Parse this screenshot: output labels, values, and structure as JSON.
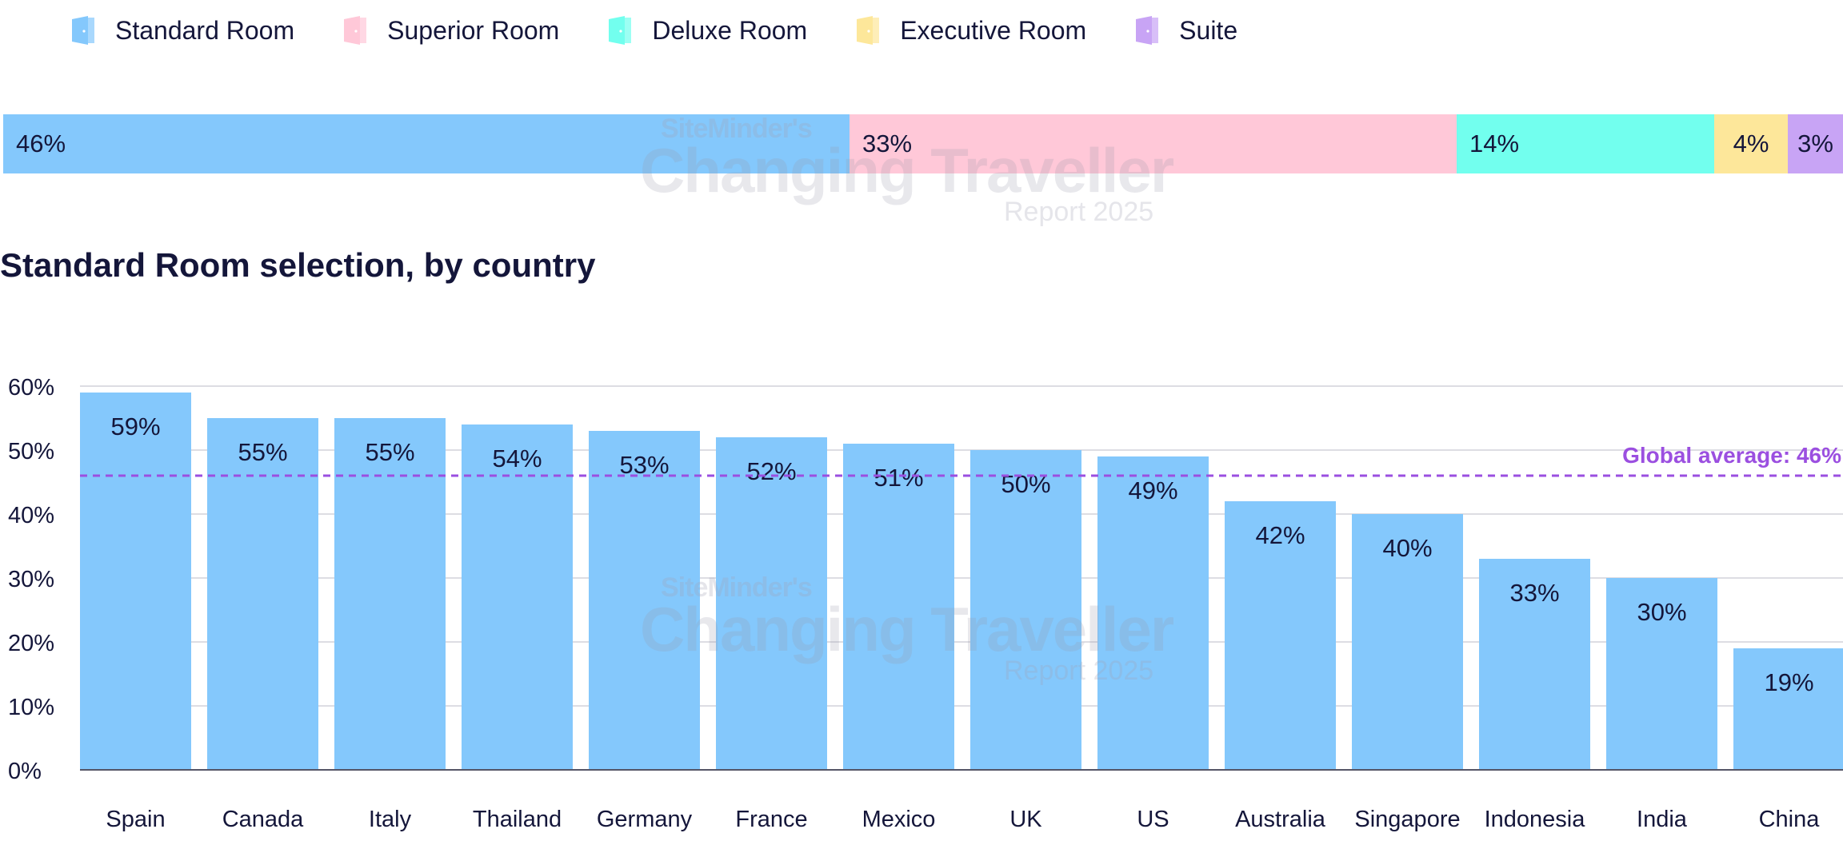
{
  "legend": {
    "items": [
      {
        "label": "Standard Room",
        "color": "#84c8fc",
        "icon": "door-icon"
      },
      {
        "label": "Superior Room",
        "color": "#ffc8d8",
        "icon": "door-icon"
      },
      {
        "label": "Deluxe Room",
        "color": "#72ffee",
        "icon": "door-icon"
      },
      {
        "label": "Executive Room",
        "color": "#fde79a",
        "icon": "door-icon"
      },
      {
        "label": "Suite",
        "color": "#c8a4f5",
        "icon": "door-icon"
      }
    ]
  },
  "room_mix": {
    "segments": [
      {
        "name": "Standard Room",
        "value": 46,
        "label": "46%",
        "color": "#84c8fc"
      },
      {
        "name": "Superior Room",
        "value": 33,
        "label": "33%",
        "color": "#ffc8d8"
      },
      {
        "name": "Deluxe Room",
        "value": 14,
        "label": "14%",
        "color": "#72ffee"
      },
      {
        "name": "Executive Room",
        "value": 4,
        "label": "4%",
        "color": "#fde79a"
      },
      {
        "name": "Suite",
        "value": 3,
        "label": "3%",
        "color": "#c8a4f5"
      }
    ]
  },
  "watermark": {
    "line1": "SiteMinder's",
    "line2": "Changing Traveller",
    "line3": "Report 2025"
  },
  "section": {
    "title": "Standard Room selection, by country"
  },
  "chart_data": {
    "type": "bar",
    "title": "Standard Room selection, by country",
    "categories": [
      "Spain",
      "Canada",
      "Italy",
      "Thailand",
      "Germany",
      "France",
      "Mexico",
      "UK",
      "US",
      "Australia",
      "Singapore",
      "Indonesia",
      "India",
      "China"
    ],
    "values": [
      59,
      55,
      55,
      54,
      53,
      52,
      51,
      50,
      49,
      42,
      40,
      33,
      30,
      19
    ],
    "value_labels": [
      "59%",
      "55%",
      "55%",
      "54%",
      "53%",
      "52%",
      "51%",
      "50%",
      "49%",
      "42%",
      "40%",
      "33%",
      "30%",
      "19%"
    ],
    "ylim": [
      0,
      60
    ],
    "yticks": [
      0,
      10,
      20,
      30,
      40,
      50,
      60
    ],
    "ytick_labels": [
      "0%",
      "10%",
      "20%",
      "30%",
      "40%",
      "50%",
      "60%"
    ],
    "grid": true,
    "bar_color": "#84c8fc",
    "reference_line": {
      "value": 46,
      "label": "Global average: 46%",
      "color": "#9b4fe0"
    }
  }
}
